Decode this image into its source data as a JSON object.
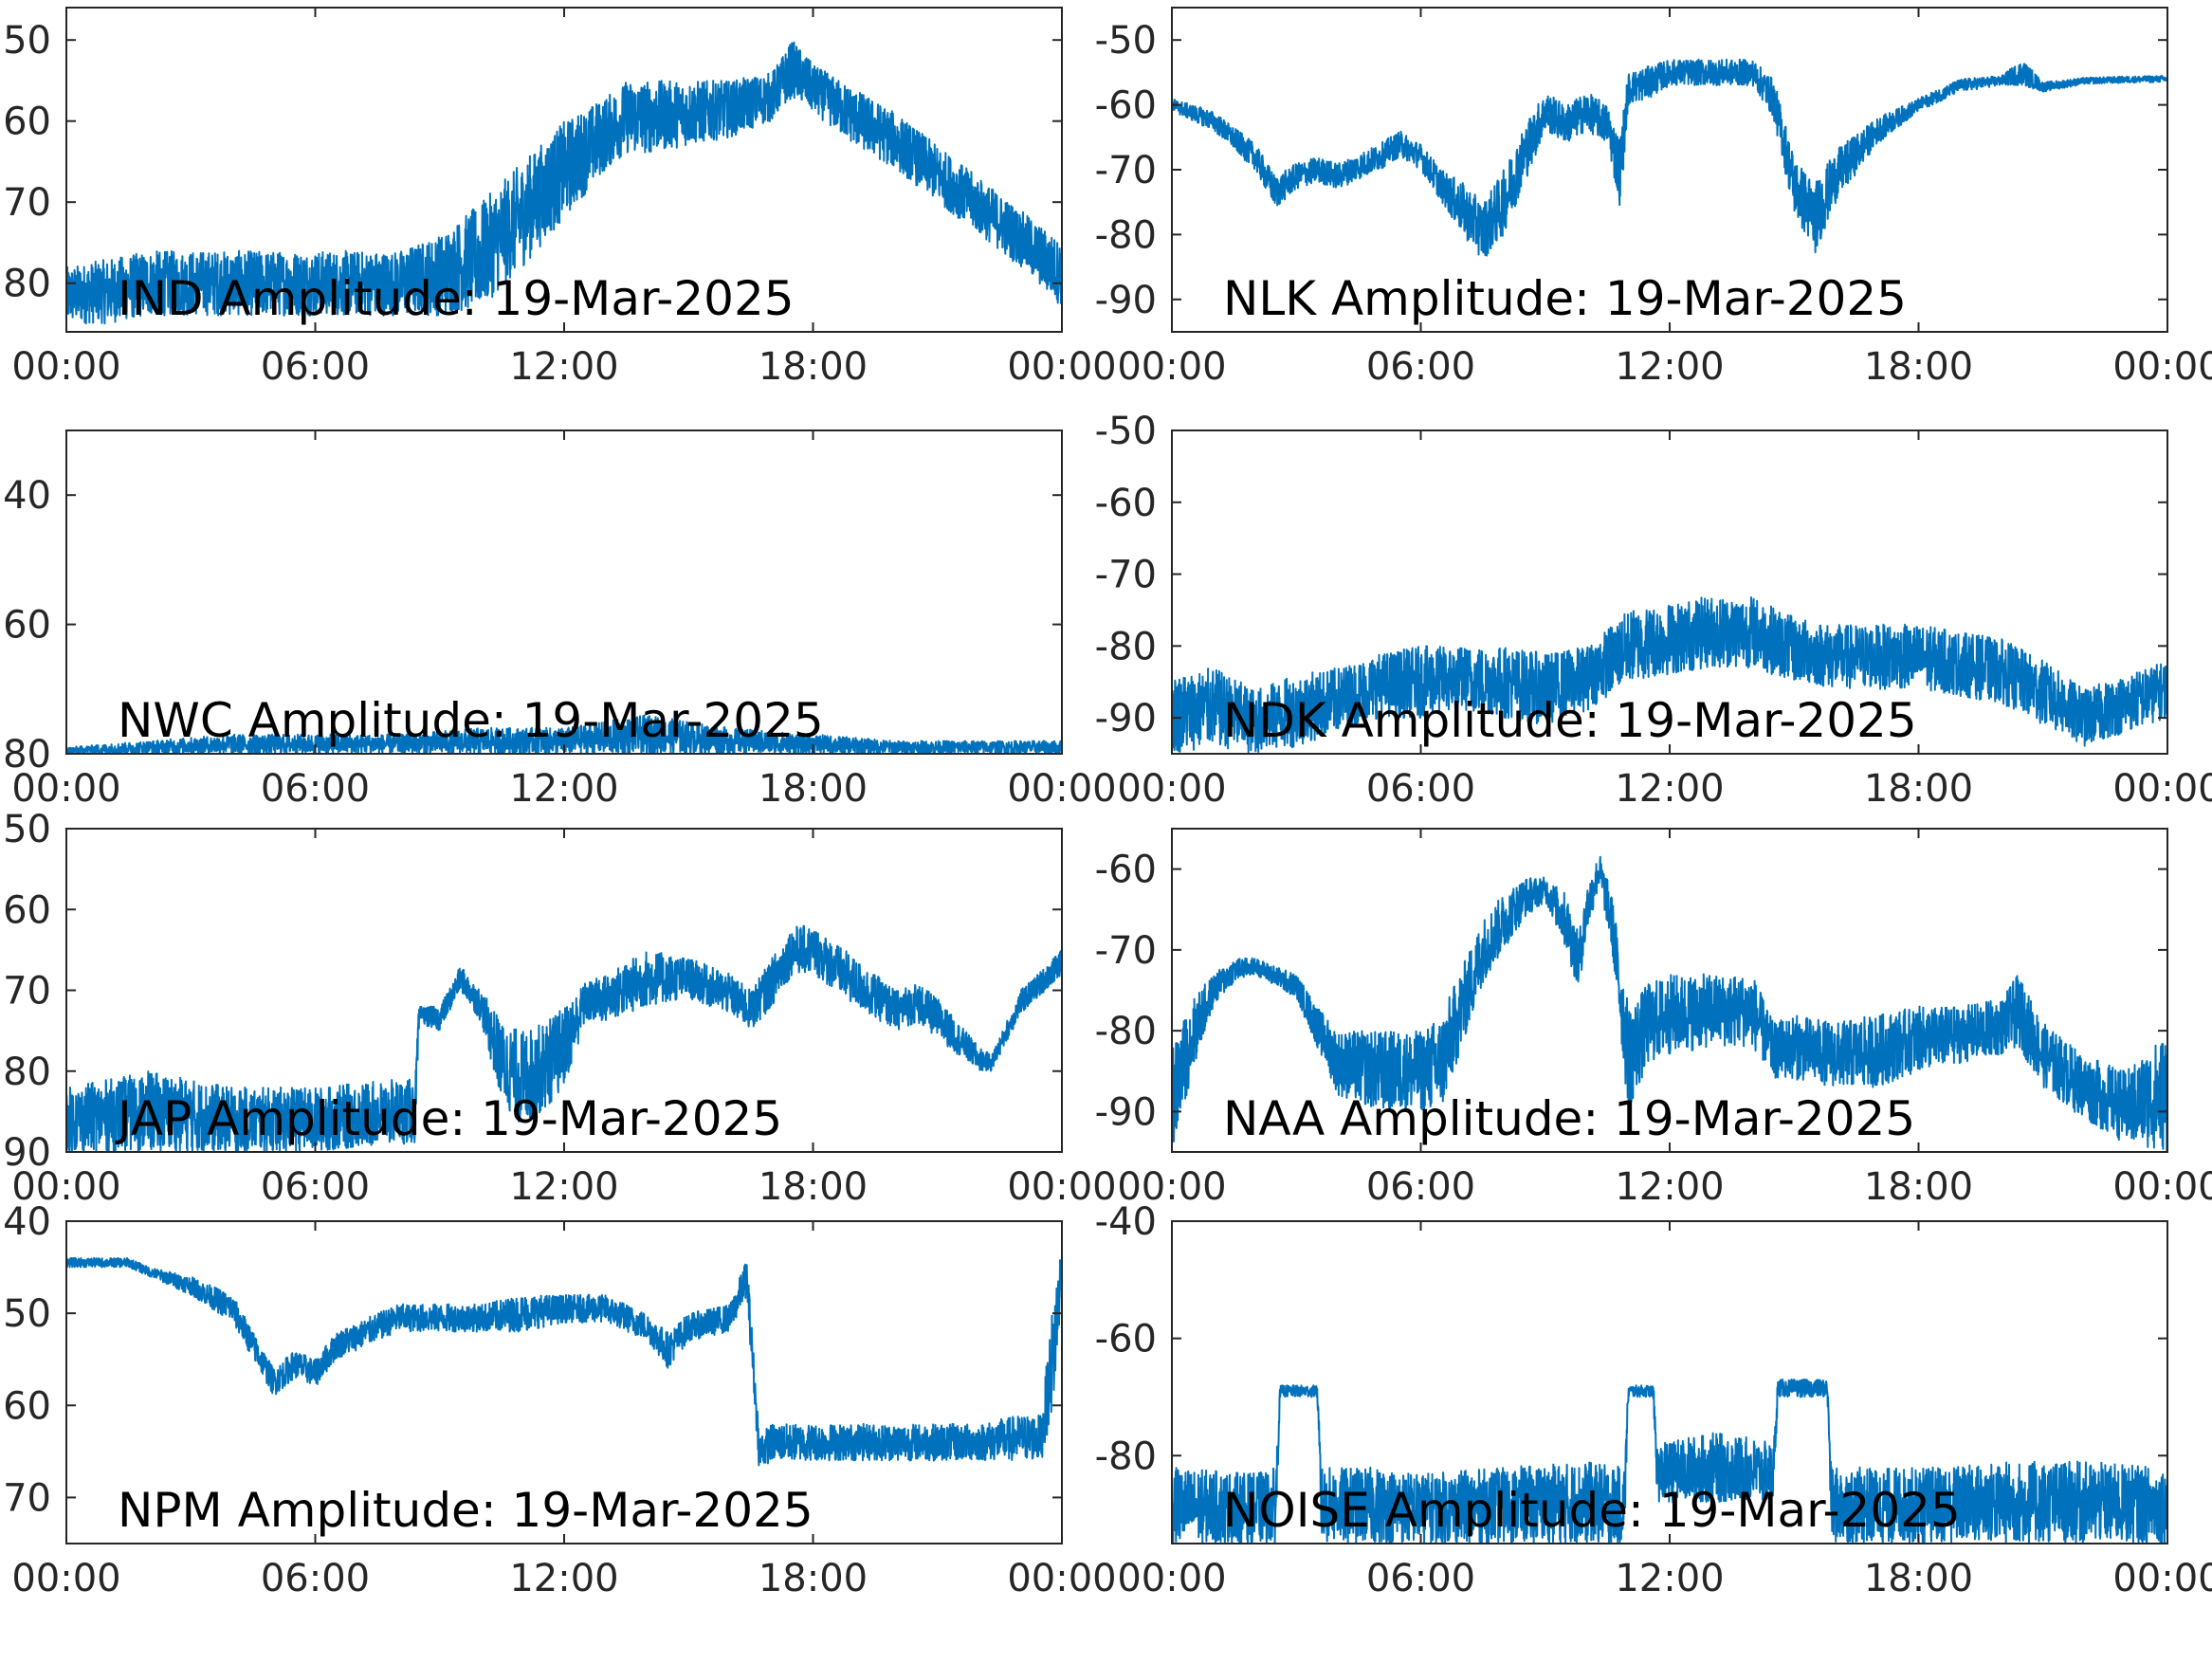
{
  "figure": {
    "trace_color": "#0072BD",
    "axis_color": "#262626",
    "background": "#ffffff"
  },
  "chart_data": [
    {
      "type": "line",
      "title": "IND Amplitude: 19-Mar-2025",
      "x_unit": "hours",
      "xlim": [
        0,
        24
      ],
      "ylim": [
        -86,
        -46
      ],
      "x_ticks": [
        0,
        6,
        12,
        18,
        24
      ],
      "x_tick_labels": [
        "00:00",
        "06:00",
        "12:00",
        "18:00",
        "00:00"
      ],
      "y_ticks": [
        -50,
        -60,
        -70,
        -80
      ],
      "y_tick_labels": [
        "50",
        "60",
        "70",
        "80"
      ],
      "x": [
        0,
        1,
        2,
        3,
        4,
        5,
        6,
        7,
        8,
        9,
        10,
        11,
        12,
        13,
        13.5,
        14,
        15,
        16,
        17,
        17.5,
        18,
        19,
        20,
        21,
        22,
        23,
        24
      ],
      "lo": [
        -85,
        -85,
        -84,
        -84,
        -84,
        -84,
        -84,
        -84,
        -84,
        -84,
        -83,
        -78,
        -72,
        -66,
        -64,
        -64,
        -63,
        -62,
        -60,
        -57,
        -59,
        -63,
        -66,
        -70,
        -74,
        -78,
        -83
      ],
      "hi": [
        -78,
        -77,
        -76,
        -76,
        -76,
        -76,
        -76,
        -76,
        -76,
        -74,
        -70,
        -65,
        -60,
        -57,
        -55,
        -55,
        -55,
        -55,
        -54,
        -50,
        -53,
        -56,
        -59,
        -63,
        -67,
        -71,
        -75
      ]
    },
    {
      "type": "line",
      "title": "NLK Amplitude: 19-Mar-2025",
      "x_unit": "hours",
      "xlim": [
        0,
        24
      ],
      "ylim": [
        -95,
        -45
      ],
      "x_ticks": [
        0,
        6,
        12,
        18,
        24
      ],
      "x_tick_labels": [
        "00:00",
        "06:00",
        "12:00",
        "18:00",
        "00:00"
      ],
      "y_ticks": [
        -50,
        -60,
        -70,
        -80,
        -90
      ],
      "y_tick_labels": [
        "-50",
        "-60",
        "-70",
        "-80",
        "-90"
      ],
      "x": [
        0,
        1,
        2,
        2.5,
        3,
        3.5,
        4,
        5,
        5.5,
        6,
        6.5,
        7,
        7.5,
        8,
        8.5,
        9,
        9.5,
        10,
        10.5,
        10.8,
        11,
        11.5,
        12,
        13,
        14,
        14.5,
        15,
        15.5,
        16,
        17,
        18,
        19,
        20,
        20.5,
        21,
        22,
        23,
        24
      ],
      "lo": [
        -61,
        -64,
        -70,
        -76,
        -73,
        -72,
        -73,
        -70,
        -68,
        -70,
        -75,
        -80,
        -84,
        -80,
        -72,
        -64,
        -66,
        -64,
        -66,
        -76,
        -60,
        -59,
        -57,
        -57,
        -57,
        -62,
        -77,
        -83,
        -75,
        -66,
        -61,
        -58,
        -57,
        -57,
        -58,
        -56.8,
        -56.6,
        -56.5
      ],
      "hi": [
        -59,
        -61,
        -66,
        -71,
        -69,
        -68,
        -69,
        -66,
        -64,
        -66,
        -70,
        -72,
        -75,
        -70,
        -63,
        -58,
        -60,
        -58,
        -60,
        -65,
        -55,
        -54,
        -53,
        -53,
        -53,
        -56,
        -68,
        -72,
        -67,
        -62,
        -59,
        -56,
        -55.5,
        -53,
        -56.5,
        -55.8,
        -55.6,
        -55.5
      ]
    },
    {
      "type": "line",
      "title": "NWC Amplitude: 19-Mar-2025",
      "x_unit": "hours",
      "xlim": [
        0,
        24
      ],
      "ylim": [
        -80,
        -30
      ],
      "x_ticks": [
        0,
        6,
        12,
        18,
        24
      ],
      "x_tick_labels": [
        "00:00",
        "06:00",
        "12:00",
        "18:00",
        "00:00"
      ],
      "y_ticks": [
        -40,
        -60,
        -80
      ],
      "y_tick_labels": [
        "40",
        "60",
        "80"
      ],
      "x": [
        0,
        2,
        4,
        6,
        8,
        10,
        12,
        13,
        14,
        15,
        16,
        18,
        20,
        22,
        24
      ],
      "lo": [
        -80,
        -80,
        -80,
        -80,
        -80,
        -80,
        -80,
        -80,
        -80,
        -80,
        -80,
        -80,
        -80,
        -80,
        -80
      ],
      "hi": [
        -79,
        -78,
        -77,
        -77,
        -77,
        -76,
        -76,
        -75,
        -74,
        -75,
        -76,
        -77,
        -78,
        -78,
        -78
      ]
    },
    {
      "type": "line",
      "title": "NDK Amplitude: 19-Mar-2025",
      "x_unit": "hours",
      "xlim": [
        0,
        24
      ],
      "ylim": [
        -95,
        -50
      ],
      "x_ticks": [
        0,
        6,
        12,
        18,
        24
      ],
      "x_tick_labels": [
        "00:00",
        "06:00",
        "12:00",
        "18:00",
        "00:00"
      ],
      "y_ticks": [
        -50,
        -60,
        -70,
        -80,
        -90
      ],
      "y_tick_labels": [
        "-50",
        "-60",
        "-70",
        "-80",
        "-90"
      ],
      "x": [
        0,
        1,
        2,
        3,
        4,
        5,
        6,
        7,
        8,
        9,
        10,
        11,
        12,
        13,
        14,
        15,
        16,
        17,
        18,
        19,
        20,
        21,
        22,
        23,
        24
      ],
      "lo": [
        -95,
        -94,
        -95,
        -94,
        -92,
        -90,
        -90,
        -89,
        -90,
        -91,
        -89,
        -85,
        -84,
        -83,
        -83,
        -85,
        -86,
        -86,
        -86,
        -87,
        -88,
        -91,
        -94,
        -92,
        -90
      ],
      "hi": [
        -84,
        -83,
        -86,
        -84,
        -83,
        -81,
        -80,
        -80,
        -80,
        -81,
        -80,
        -75,
        -74,
        -73,
        -73,
        -76,
        -77,
        -77,
        -77,
        -78,
        -79,
        -82,
        -86,
        -84,
        -82
      ]
    },
    {
      "type": "line",
      "title": "JAP Amplitude: 19-Mar-2025",
      "x_unit": "hours",
      "xlim": [
        0,
        24
      ],
      "ylim": [
        -90,
        -50
      ],
      "x_ticks": [
        0,
        6,
        12,
        18,
        24
      ],
      "x_tick_labels": [
        "00:00",
        "06:00",
        "12:00",
        "18:00",
        "00:00"
      ],
      "y_ticks": [
        -50,
        -60,
        -70,
        -80,
        -90
      ],
      "y_tick_labels": [
        "50",
        "60",
        "70",
        "80",
        "90"
      ],
      "x": [
        0,
        2,
        4,
        6,
        8,
        8.4,
        8.5,
        9,
        9.5,
        10,
        10.5,
        11,
        11.5,
        12,
        12.5,
        13,
        14,
        15,
        16,
        16.5,
        17,
        17.5,
        18,
        19,
        20,
        20.5,
        21,
        22,
        22.3,
        23,
        24
      ],
      "lo": [
        -90,
        -90,
        -90,
        -90,
        -89,
        -89,
        -74,
        -75,
        -70,
        -74,
        -84,
        -87,
        -85,
        -82,
        -74,
        -74,
        -72,
        -71,
        -73,
        -75,
        -72,
        -68,
        -68,
        -72,
        -75,
        -74,
        -76,
        -80,
        -80,
        -73,
        -68
      ],
      "hi": [
        -82,
        -80,
        -82,
        -82,
        -81,
        -81,
        -72,
        -72,
        -67,
        -70,
        -74,
        -75,
        -74,
        -72,
        -69,
        -68,
        -65,
        -66,
        -68,
        -70,
        -66,
        -62,
        -62,
        -66,
        -70,
        -69,
        -71,
        -77,
        -78,
        -70,
        -65
      ]
    },
    {
      "type": "line",
      "title": "NAA Amplitude: 19-Mar-2025",
      "x_unit": "hours",
      "xlim": [
        0,
        24
      ],
      "ylim": [
        -95,
        -55
      ],
      "x_ticks": [
        0,
        6,
        12,
        18,
        24
      ],
      "x_tick_labels": [
        "00:00",
        "06:00",
        "12:00",
        "18:00",
        "00:00"
      ],
      "y_ticks": [
        -60,
        -70,
        -80,
        -90
      ],
      "y_tick_labels": [
        "-60",
        "-70",
        "-80",
        "-90"
      ],
      "x": [
        0,
        0.5,
        1,
        1.5,
        2,
        3,
        3.5,
        4,
        5,
        6,
        6.5,
        7,
        7.5,
        8,
        8.5,
        9,
        9.5,
        9.8,
        10,
        10.3,
        10.6,
        11,
        11.5,
        12,
        13,
        14,
        14.5,
        15,
        16,
        17,
        18,
        19,
        20,
        20.4,
        21,
        22,
        23,
        24
      ],
      "lo": [
        -95,
        -85,
        -77,
        -74,
        -73,
        -76,
        -82,
        -88,
        -90,
        -90,
        -90,
        -82,
        -74,
        -70,
        -66,
        -64,
        -70,
        -75,
        -68,
        -62,
        -70,
        -90,
        -84,
        -83,
        -82,
        -82,
        -86,
        -86,
        -87,
        -87,
        -85,
        -84,
        -83,
        -82,
        -87,
        -91,
        -94,
        -95
      ],
      "hi": [
        -82,
        -76,
        -73,
        -71,
        -71,
        -73,
        -77,
        -80,
        -80,
        -80,
        -78,
        -72,
        -66,
        -63,
        -61,
        -61,
        -63,
        -68,
        -62,
        -58,
        -63,
        -77,
        -74,
        -73,
        -73,
        -73,
        -79,
        -78,
        -79,
        -78,
        -77,
        -77,
        -76,
        -73,
        -79,
        -83,
        -85,
        -80
      ]
    },
    {
      "type": "line",
      "title": "NPM Amplitude: 19-Mar-2025",
      "x_unit": "hours",
      "xlim": [
        0,
        24
      ],
      "ylim": [
        -75,
        -40
      ],
      "x_ticks": [
        0,
        6,
        12,
        18,
        24
      ],
      "x_tick_labels": [
        "00:00",
        "06:00",
        "12:00",
        "18:00",
        "00:00"
      ],
      "y_ticks": [
        -40,
        -50,
        -60,
        -70
      ],
      "y_tick_labels": [
        "40",
        "50",
        "60",
        "70"
      ],
      "x": [
        0,
        0.5,
        1,
        1.5,
        2,
        3,
        4,
        4.5,
        5,
        5.5,
        6,
        6.5,
        7,
        8,
        9,
        10,
        11,
        12,
        13,
        14,
        14.5,
        15,
        16,
        16.4,
        16.7,
        17,
        18,
        20,
        22,
        23,
        23.5,
        23.8,
        24
      ],
      "lo": [
        -45,
        -45,
        -45,
        -45,
        -46,
        -48,
        -51,
        -55,
        -59,
        -57,
        -58,
        -55,
        -54,
        -52,
        -52,
        -52,
        -52,
        -51,
        -51,
        -53,
        -56,
        -53,
        -52,
        -48,
        -67,
        -66,
        -66,
        -66,
        -66,
        -66,
        -66,
        -60,
        -47
      ],
      "hi": [
        -44,
        -44,
        -44,
        -44,
        -45,
        -46,
        -48,
        -52,
        -56,
        -54,
        -55,
        -52,
        -51,
        -49,
        -49,
        -49,
        -48,
        -48,
        -48,
        -50,
        -52,
        -50,
        -49,
        -44,
        -63,
        -62,
        -62,
        -62,
        -62,
        -61,
        -61,
        -48,
        -42
      ]
    },
    {
      "type": "line",
      "title": "NOISE Amplitude: 19-Mar-2025",
      "x_unit": "hours",
      "xlim": [
        0,
        24
      ],
      "ylim": [
        -95,
        -40
      ],
      "x_ticks": [
        0,
        6,
        12,
        18,
        24
      ],
      "x_tick_labels": [
        "00:00",
        "06:00",
        "12:00",
        "18:00",
        "00:00"
      ],
      "y_ticks": [
        -40,
        -60,
        -80
      ],
      "y_tick_labels": [
        "-40",
        "-60",
        "-80"
      ],
      "x": [
        0,
        2,
        2.5,
        2.6,
        3.5,
        3.6,
        5,
        6,
        8,
        10,
        10.9,
        11,
        11.6,
        11.7,
        13,
        14,
        14.5,
        14.6,
        15.8,
        15.9,
        17,
        18,
        20,
        22,
        24
      ],
      "lo": [
        -95,
        -95,
        -95,
        -70,
        -70,
        -95,
        -95,
        -95,
        -95,
        -95,
        -95,
        -70,
        -70,
        -88,
        -88,
        -88,
        -88,
        -70,
        -70,
        -95,
        -95,
        -95,
        -95,
        -95,
        -95
      ],
      "hi": [
        -82,
        -83,
        -82,
        -68,
        -68,
        -82,
        -82,
        -83,
        -82,
        -81,
        -82,
        -68,
        -68,
        -78,
        -76,
        -77,
        -78,
        -67,
        -67,
        -82,
        -82,
        -82,
        -81,
        -81,
        -82
      ]
    }
  ]
}
